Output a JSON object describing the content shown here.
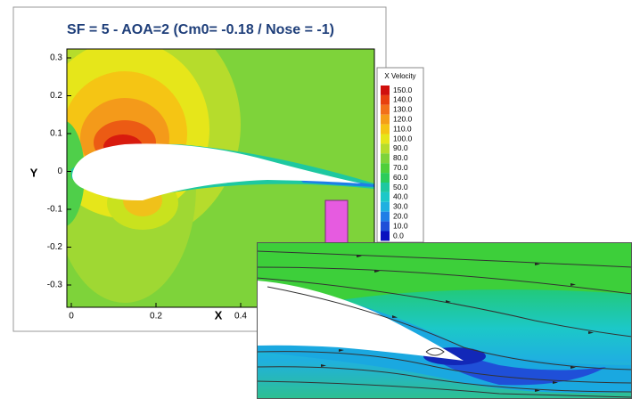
{
  "title": "SF = 5 - AOA=2 (Cm0= -0.18 / Nose = -1)",
  "axes": {
    "x_label": "X",
    "y_label": "Y",
    "x_ticks": [
      "0",
      "0.2",
      "0.4"
    ],
    "y_ticks": [
      "0.3",
      "0.2",
      "0.1",
      "0",
      "-0.1",
      "-0.2",
      "-0.3"
    ]
  },
  "legend": {
    "title": "X Velocity",
    "levels": [
      "150.0",
      "140.0",
      "130.0",
      "120.0",
      "110.0",
      "100.0",
      "90.0",
      "80.0",
      "70.0",
      "60.0",
      "50.0",
      "40.0",
      "30.0",
      "20.0",
      "10.0",
      "0.0"
    ]
  }
}
